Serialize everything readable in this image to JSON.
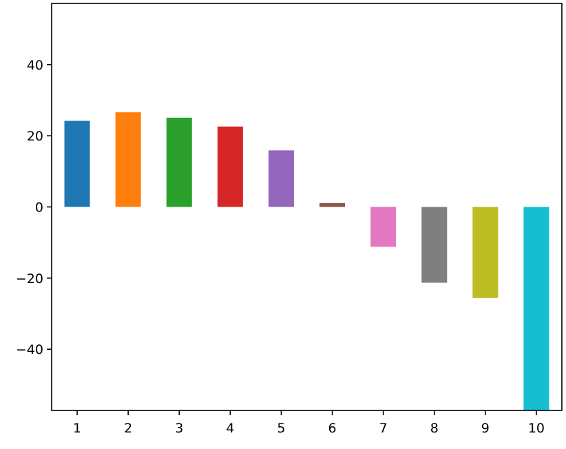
{
  "chart_data": {
    "type": "bar",
    "title": "",
    "xlabel": "",
    "ylabel": "",
    "categories": [
      "1",
      "2",
      "3",
      "4",
      "5",
      "6",
      "7",
      "8",
      "9",
      "10"
    ],
    "values": [
      24.2,
      26.6,
      25.1,
      22.6,
      15.9,
      1.1,
      -11.2,
      -21.3,
      -25.6,
      -60
    ],
    "colors": [
      "#1f77b4",
      "#ff7f0e",
      "#2ca02c",
      "#d62728",
      "#9467bd",
      "#8c564b",
      "#e377c2",
      "#7f7f7f",
      "#bcbd22",
      "#17becf"
    ],
    "ylim": [
      -57.2,
      57.2
    ],
    "yticks": [
      -40,
      -20,
      0,
      20,
      40
    ],
    "ytick_labels": [
      "−40",
      "−20",
      "0",
      "20",
      "40"
    ],
    "grid": false,
    "legend": "none"
  }
}
